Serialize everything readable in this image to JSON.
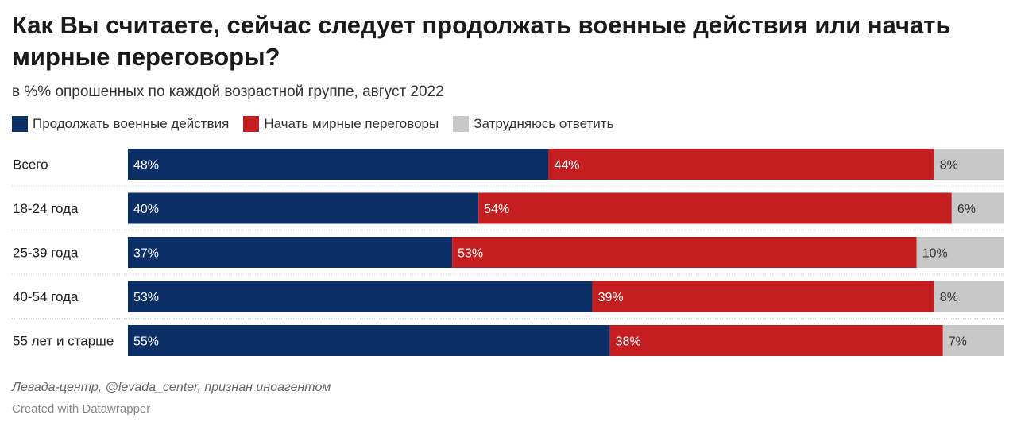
{
  "title": "Как Вы считаете, сейчас следует продолжать военные действия или начать мирные переговоры?",
  "subtitle": "в %% опрошенных по каждой возрастной группе, август 2022",
  "source": "Левада-центр, @levada_center, признан иноагентом",
  "credit": "Created with Datawrapper",
  "chart_data": {
    "type": "bar",
    "orientation": "horizontal",
    "stacked": true,
    "unit": "%",
    "legend_position": "top",
    "categories": [
      "Всего",
      "18-24 года",
      "25-39 года",
      "40-54 года",
      "55 лет и старше"
    ],
    "series": [
      {
        "name": "Продолжать военные действия",
        "color": "#0b2f66",
        "values": [
          48,
          40,
          37,
          53,
          55
        ]
      },
      {
        "name": "Начать мирные переговоры",
        "color": "#c41e21",
        "values": [
          44,
          54,
          53,
          39,
          38
        ]
      },
      {
        "name": "Затрудняюсь ответить",
        "color": "#c8c8c8",
        "values": [
          8,
          6,
          10,
          8,
          7
        ]
      }
    ]
  }
}
